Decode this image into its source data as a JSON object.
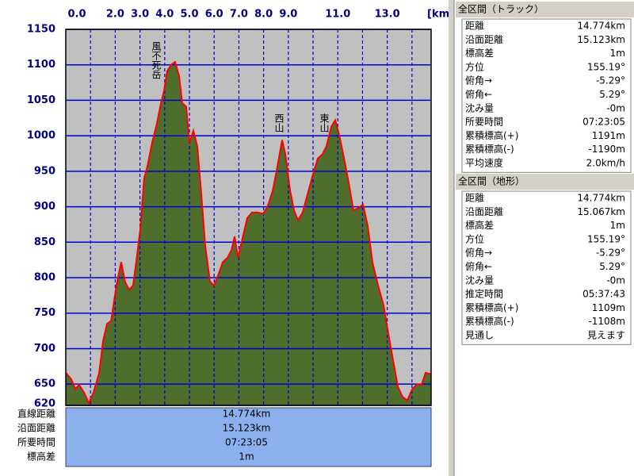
{
  "chart_data": {
    "type": "area",
    "x": [
      0,
      0.22,
      0.38,
      0.54,
      0.74,
      0.93,
      1.12,
      1.35,
      1.51,
      1.67,
      1.83,
      2.05,
      2.24,
      2.4,
      2.56,
      2.72,
      2.85,
      3.01,
      3.17,
      3.3,
      3.49,
      3.69,
      3.85,
      3.97,
      4.1,
      4.26,
      4.42,
      4.58,
      4.71,
      4.87,
      5.0,
      5.16,
      5.32,
      5.48,
      5.64,
      5.83,
      5.99,
      6.19,
      6.35,
      6.54,
      6.7,
      6.83,
      6.96,
      7.15,
      7.34,
      7.53,
      7.76,
      7.98,
      8.17,
      8.37,
      8.56,
      8.75,
      8.88,
      9.07,
      9.23,
      9.39,
      9.58,
      9.78,
      10.0,
      10.19,
      10.38,
      10.54,
      10.74,
      10.9,
      11.06,
      11.22,
      11.44,
      11.63,
      11.83,
      12.02,
      12.21,
      12.4,
      12.63,
      12.85,
      13.04,
      13.24,
      13.43,
      13.62,
      13.81,
      14.01,
      14.2,
      14.39,
      14.55,
      14.774
    ],
    "values": [
      666,
      657,
      643,
      649,
      638,
      623,
      638,
      666,
      711,
      735,
      739,
      789,
      822,
      794,
      783,
      789,
      822,
      867,
      940,
      957,
      990,
      1018,
      1046,
      1063,
      1091,
      1100,
      1104,
      1085,
      1046,
      1041,
      990,
      1007,
      985,
      918,
      845,
      795,
      789,
      806,
      822,
      828,
      839,
      858,
      828,
      856,
      884,
      892,
      892,
      890,
      901,
      923,
      957,
      994,
      974,
      923,
      895,
      881,
      892,
      918,
      946,
      968,
      974,
      985,
      1013,
      1022,
      1001,
      974,
      934,
      895,
      898,
      903,
      873,
      822,
      789,
      761,
      722,
      683,
      646,
      632,
      627,
      643,
      650,
      649,
      666,
      664
    ],
    "xlim": [
      0,
      14.774
    ],
    "xticks": [
      {
        "value": 0,
        "label": "0.0"
      },
      {
        "value": 2,
        "label": "2.0"
      },
      {
        "value": 3,
        "label": "3.0"
      },
      {
        "value": 4,
        "label": "4.0"
      },
      {
        "value": 5,
        "label": "5.0"
      },
      {
        "value": 6,
        "label": "6.0"
      },
      {
        "value": 7,
        "label": "7.0"
      },
      {
        "value": 8,
        "label": "8.0"
      },
      {
        "value": 9,
        "label": "9.0"
      },
      {
        "value": 11,
        "label": "11.0"
      },
      {
        "value": 13,
        "label": "13.0"
      }
    ],
    "xgrid": [
      1,
      2,
      3,
      4,
      5,
      6,
      7,
      8,
      9,
      10,
      11,
      12,
      13,
      14
    ],
    "x_unit": "[km]",
    "ylim": [
      620,
      1150
    ],
    "yticks": [
      620,
      650,
      700,
      750,
      800,
      850,
      900,
      950,
      1000,
      1050,
      1100,
      1150
    ],
    "grid": true,
    "color": "#4f6e2c",
    "line_color": "#ff0000",
    "grid_color": "#0000d0",
    "background": "#c0c0c0",
    "annotations": [
      "風不死岳",
      "西山",
      "東山"
    ]
  },
  "summary": {
    "labels": [
      "直線距離",
      "沿面距離",
      "所要時間",
      "標高差"
    ],
    "values": [
      "14.774km",
      "15.123km",
      "07:23:05",
      "1m"
    ]
  },
  "panels": [
    {
      "title": "全区間（トラック）",
      "rows": [
        [
          "距離",
          "14.774km"
        ],
        [
          "沿面距離",
          "15.123km"
        ],
        [
          "標高差",
          "1m"
        ],
        [
          "方位",
          "155.19°"
        ],
        [
          "俯角→",
          "-5.29°"
        ],
        [
          "俯角←",
          "5.29°"
        ],
        [
          "沈み量",
          "-0m"
        ],
        [
          "所要時間",
          "07:23:05"
        ],
        [
          "累積標高(+)",
          "1191m"
        ],
        [
          "累積標高(-)",
          "-1190m"
        ],
        [
          "平均速度",
          "2.0km/h"
        ]
      ]
    },
    {
      "title": "全区間（地形）",
      "rows": [
        [
          "距離",
          "14.774km"
        ],
        [
          "沿面距離",
          "15.067km"
        ],
        [
          "標高差",
          "1m"
        ],
        [
          "方位",
          "155.19°"
        ],
        [
          "俯角→",
          "-5.29°"
        ],
        [
          "俯角←",
          "5.29°"
        ],
        [
          "沈み量",
          "-0m"
        ],
        [
          "推定時間",
          "05:37:43"
        ],
        [
          "累積標高(+)",
          "1109m"
        ],
        [
          "累積標高(-)",
          "-1108m"
        ],
        [
          "見通し",
          "見えます"
        ]
      ]
    }
  ]
}
